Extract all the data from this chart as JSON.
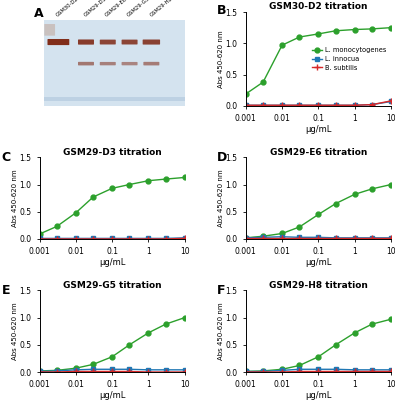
{
  "x_values": [
    0.001,
    0.003,
    0.01,
    0.03,
    0.1,
    0.3,
    1,
    3,
    10
  ],
  "panels": {
    "B": {
      "title": "GSM30-D2 titration",
      "green": [
        0.19,
        0.38,
        0.97,
        1.1,
        1.15,
        1.2,
        1.22,
        1.23,
        1.25
      ],
      "blue": [
        0.01,
        0.01,
        0.01,
        0.01,
        0.01,
        0.01,
        0.01,
        0.02,
        0.07
      ],
      "red": [
        0.01,
        0.01,
        0.01,
        0.01,
        0.01,
        0.01,
        0.01,
        0.02,
        0.08
      ],
      "ylim": [
        0,
        1.5
      ],
      "yticks": [
        0.0,
        0.5,
        1.0,
        1.5
      ],
      "show_legend": true
    },
    "C": {
      "title": "GSM29-D3 titration",
      "green": [
        0.09,
        0.23,
        0.48,
        0.77,
        0.93,
        1.0,
        1.07,
        1.1,
        1.13
      ],
      "blue": [
        0.01,
        0.01,
        0.01,
        0.01,
        0.01,
        0.01,
        0.01,
        0.01,
        0.02
      ],
      "red": [
        0.0,
        0.0,
        0.0,
        0.0,
        0.0,
        0.0,
        0.0,
        0.0,
        0.01
      ],
      "ylim": [
        0,
        1.5
      ],
      "yticks": [
        0.0,
        0.5,
        1.0,
        1.5
      ],
      "show_legend": false
    },
    "D": {
      "title": "GSM29-E6 titration",
      "green": [
        0.02,
        0.05,
        0.1,
        0.22,
        0.45,
        0.65,
        0.82,
        0.92,
        1.0
      ],
      "blue": [
        0.02,
        0.03,
        0.04,
        0.03,
        0.03,
        0.02,
        0.02,
        0.02,
        0.02
      ],
      "red": [
        0.01,
        0.01,
        0.01,
        0.01,
        0.01,
        0.01,
        0.01,
        0.01,
        0.01
      ],
      "ylim": [
        0,
        1.5
      ],
      "yticks": [
        0.0,
        0.5,
        1.0,
        1.5
      ],
      "show_legend": false
    },
    "E": {
      "title": "GSM29-G5 titration",
      "green": [
        0.02,
        0.03,
        0.07,
        0.14,
        0.28,
        0.5,
        0.72,
        0.88,
        1.0
      ],
      "blue": [
        0.01,
        0.02,
        0.04,
        0.05,
        0.05,
        0.05,
        0.04,
        0.04,
        0.04
      ],
      "red": [
        0.0,
        0.0,
        0.01,
        0.01,
        0.01,
        0.01,
        0.0,
        0.0,
        0.0
      ],
      "ylim": [
        0,
        1.5
      ],
      "yticks": [
        0.0,
        0.5,
        1.0,
        1.5
      ],
      "show_legend": false
    },
    "F": {
      "title": "GSM29-H8 titration",
      "green": [
        0.01,
        0.02,
        0.05,
        0.12,
        0.28,
        0.5,
        0.72,
        0.88,
        0.97
      ],
      "blue": [
        0.01,
        0.01,
        0.03,
        0.05,
        0.05,
        0.05,
        0.04,
        0.04,
        0.04
      ],
      "red": [
        0.0,
        0.0,
        0.0,
        0.01,
        0.01,
        0.01,
        0.01,
        0.01,
        0.01
      ],
      "ylim": [
        0,
        1.5
      ],
      "yticks": [
        0.0,
        0.5,
        1.0,
        1.5
      ],
      "show_legend": false
    }
  },
  "green_color": "#2ca02c",
  "blue_color": "#1f77b4",
  "red_color": "#d62728",
  "ylabel": "Abs 450-620 nm",
  "xlabel": "μg/mL",
  "legend_labels": [
    "L. monocytogenes",
    "L. innocua",
    "B. subtilis"
  ],
  "bg_color": "#ffffff",
  "gel_bg": "#c8d8e8",
  "gel_band_colors": [
    "#6b1a0a",
    "#8b2a12",
    "#7b2010",
    "#7b2010",
    "#8b2a12"
  ],
  "lane_labels": [
    "GSM30-D2",
    "GSM29-D3",
    "GSM29-E6",
    "GSM29-G5",
    "GSM29-H8"
  ]
}
